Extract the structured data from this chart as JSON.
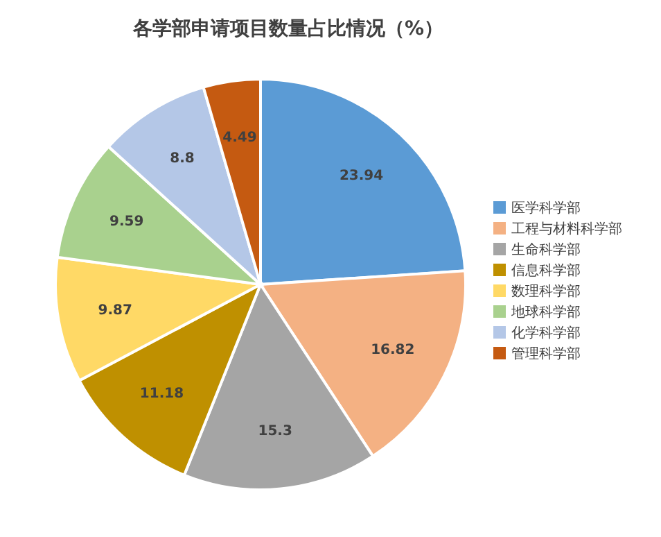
{
  "chart_data": {
    "type": "pie",
    "title": "各学部申请项目数量占比情况（%）",
    "categories": [
      "医学科学部",
      "工程与材料科学部",
      "生命科学部",
      "信息科学部",
      "数理科学部",
      "地球科学部",
      "化学科学部",
      "管理科学部"
    ],
    "values": [
      23.94,
      16.82,
      15.3,
      11.18,
      9.87,
      9.59,
      8.8,
      4.49
    ],
    "colors": [
      "#5b9bd5",
      "#f4b183",
      "#a5a5a5",
      "#bf9000",
      "#ffd966",
      "#a9d18e",
      "#b4c7e7",
      "#c55a11"
    ],
    "data_labels": true,
    "legend": "right"
  }
}
